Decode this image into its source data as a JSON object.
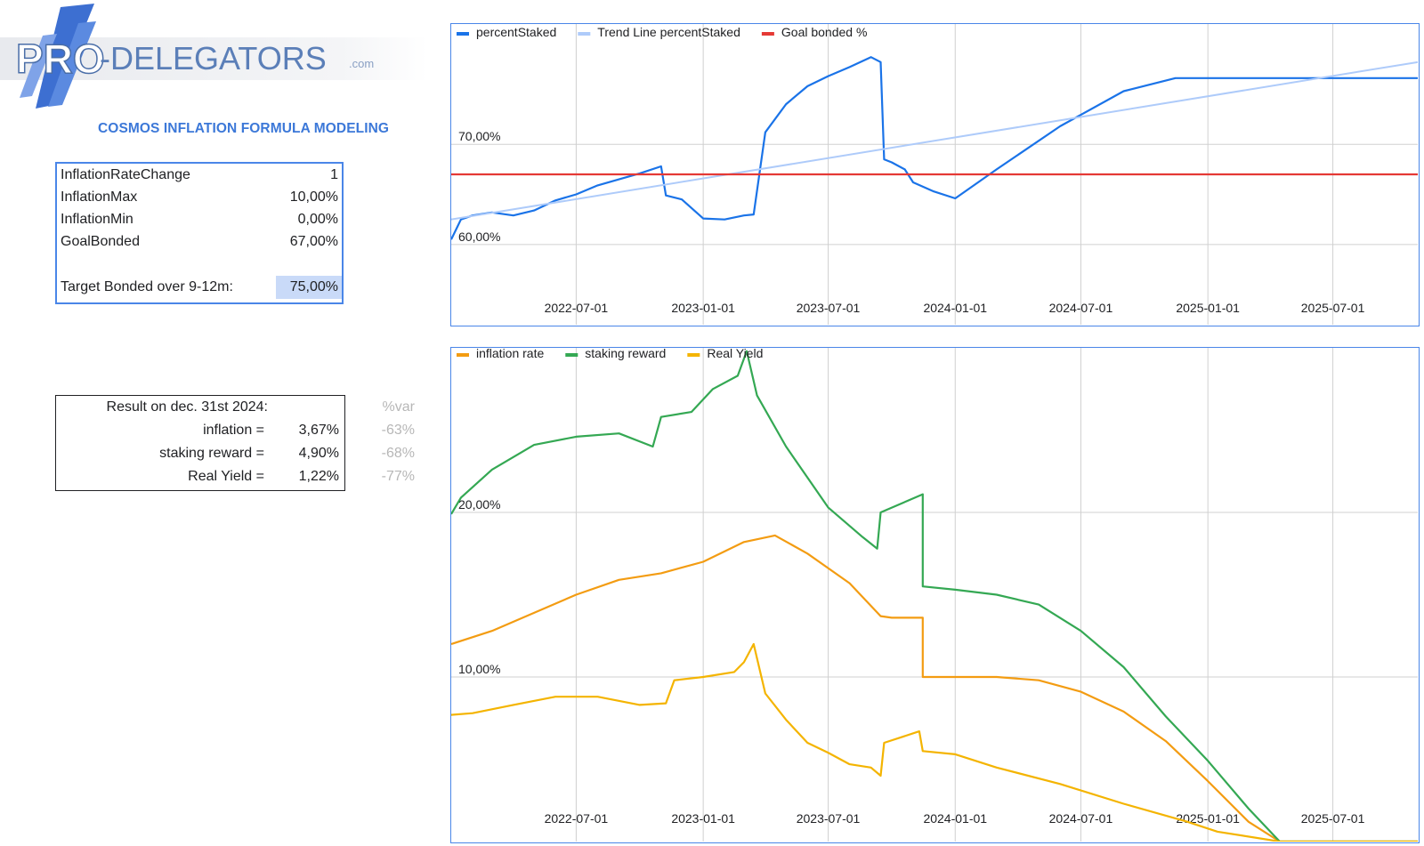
{
  "logo": {
    "text_pro": "PRO",
    "text_main": "-DELEGATORS",
    "text_com": ".com"
  },
  "subtitle": "COSMOS INFLATION FORMULA MODELING",
  "params": [
    {
      "label": "InflationRateChange",
      "value": "1"
    },
    {
      "label": "InflationMax",
      "value": "10,00%"
    },
    {
      "label": "InflationMin",
      "value": "0,00%"
    },
    {
      "label": "GoalBonded",
      "value": "67,00%"
    }
  ],
  "target": {
    "label": "Target Bonded over 9-12m:",
    "value": "75,00%"
  },
  "results": {
    "header": "Result on dec. 31st 2024:",
    "var_header": "%var",
    "rows": [
      {
        "label": "inflation =",
        "value": "3,67%",
        "var": "-63%"
      },
      {
        "label": "staking reward =",
        "value": "4,90%",
        "var": "-68%"
      },
      {
        "label": "Real Yield =",
        "value": "1,22%",
        "var": "-77%"
      }
    ]
  },
  "colors": {
    "percentStaked": "#1a73e8",
    "trend": "#aecbfa",
    "goal": "#e53935",
    "inflation": "#f39c12",
    "staking": "#34a853",
    "realyield": "#f4b400",
    "grid": "#d0d0d0",
    "accent": "#4a86e8"
  },
  "chart_data": [
    {
      "type": "line",
      "x_type": "date",
      "xlim": [
        "2022-01-01",
        "2025-11-01"
      ],
      "ylim": [
        52,
        82
      ],
      "yticks": [
        60,
        70
      ],
      "ytick_labels": [
        "60,00%",
        "70,00%"
      ],
      "xticks": [
        "2022-07-01",
        "2023-01-01",
        "2023-07-01",
        "2024-01-01",
        "2024-07-01",
        "2025-01-01",
        "2025-07-01"
      ],
      "legend": "top-left",
      "grid": true,
      "series": [
        {
          "name": "percentStaked",
          "x": [
            "2022-01-01",
            "2022-01-15",
            "2022-02-01",
            "2022-03-01",
            "2022-04-01",
            "2022-05-01",
            "2022-06-01",
            "2022-07-01",
            "2022-08-01",
            "2022-09-01",
            "2022-10-01",
            "2022-11-01",
            "2022-11-08",
            "2022-12-01",
            "2023-01-01",
            "2023-02-01",
            "2023-03-01",
            "2023-03-15",
            "2023-04-01",
            "2023-05-01",
            "2023-06-01",
            "2023-07-01",
            "2023-08-01",
            "2023-09-01",
            "2023-09-15",
            "2023-09-20",
            "2023-10-01",
            "2023-10-20",
            "2023-11-01",
            "2023-12-01",
            "2024-01-01",
            "2024-03-01",
            "2024-06-01",
            "2024-09-01",
            "2024-11-15",
            "2025-01-01",
            "2025-04-01",
            "2025-07-01",
            "2025-11-01"
          ],
          "values": [
            60.5,
            62.5,
            62.9,
            63.2,
            62.9,
            63.4,
            64.4,
            65.0,
            65.9,
            66.5,
            67.1,
            67.8,
            64.9,
            64.5,
            62.6,
            62.5,
            62.9,
            63.0,
            71.2,
            74.0,
            75.8,
            76.8,
            77.7,
            78.7,
            78.2,
            68.5,
            68.2,
            67.5,
            66.2,
            65.3,
            64.6,
            67.5,
            71.8,
            75.3,
            76.6,
            76.6,
            76.6,
            76.6,
            76.6
          ]
        },
        {
          "name": "Trend Line percentStaked",
          "x": [
            "2022-01-01",
            "2025-11-01"
          ],
          "values": [
            62.5,
            78.2
          ]
        },
        {
          "name": "Goal bonded %",
          "x": [
            "2022-01-01",
            "2025-11-01"
          ],
          "values": [
            67.0,
            67.0
          ]
        }
      ]
    },
    {
      "type": "line",
      "x_type": "date",
      "xlim": [
        "2022-01-01",
        "2025-11-01"
      ],
      "ylim": [
        0,
        30
      ],
      "yticks": [
        10,
        20
      ],
      "ytick_labels": [
        "10,00%",
        "20,00%"
      ],
      "xticks": [
        "2022-07-01",
        "2023-01-01",
        "2023-07-01",
        "2024-01-01",
        "2024-07-01",
        "2025-01-01",
        "2025-07-01"
      ],
      "legend": "top-left",
      "grid": true,
      "series": [
        {
          "name": "inflation rate",
          "x": [
            "2022-01-01",
            "2022-03-01",
            "2022-05-01",
            "2022-07-01",
            "2022-09-01",
            "2022-11-01",
            "2023-01-01",
            "2023-03-01",
            "2023-04-15",
            "2023-06-01",
            "2023-08-01",
            "2023-09-15",
            "2023-10-01",
            "2023-11-15",
            "2023-11-15",
            "2024-01-01",
            "2024-03-01",
            "2024-05-01",
            "2024-07-01",
            "2024-09-01",
            "2024-11-01",
            "2025-01-01",
            "2025-03-01",
            "2025-04-15",
            "2025-11-01"
          ],
          "values": [
            12.0,
            12.8,
            13.9,
            15.0,
            15.9,
            16.3,
            17.0,
            18.2,
            18.6,
            17.5,
            15.7,
            13.7,
            13.6,
            13.6,
            10.0,
            10.0,
            10.0,
            9.8,
            9.1,
            7.9,
            6.1,
            3.67,
            1.2,
            0.0,
            0.0
          ]
        },
        {
          "name": "staking reward",
          "x": [
            "2022-01-01",
            "2022-01-15",
            "2022-03-01",
            "2022-05-01",
            "2022-07-01",
            "2022-09-01",
            "2022-10-20",
            "2022-11-01",
            "2022-12-15",
            "2023-01-15",
            "2023-02-20",
            "2023-03-05",
            "2023-03-20",
            "2023-05-01",
            "2023-07-01",
            "2023-08-20",
            "2023-09-10",
            "2023-09-15",
            "2023-11-15",
            "2023-11-15",
            "2024-01-01",
            "2024-03-01",
            "2024-05-01",
            "2024-07-01",
            "2024-09-01",
            "2024-11-01",
            "2025-01-01",
            "2025-03-01",
            "2025-04-15",
            "2025-11-01"
          ],
          "values": [
            19.9,
            20.9,
            22.6,
            24.1,
            24.6,
            24.8,
            24.0,
            25.8,
            26.1,
            27.5,
            28.3,
            29.8,
            27.1,
            24.0,
            20.3,
            18.5,
            17.8,
            20.0,
            21.1,
            15.5,
            15.3,
            15.0,
            14.4,
            12.8,
            10.6,
            7.6,
            4.9,
            2.0,
            0.0,
            0.0
          ]
        },
        {
          "name": "Real Yield",
          "x": [
            "2022-01-01",
            "2022-02-01",
            "2022-04-01",
            "2022-06-01",
            "2022-08-01",
            "2022-10-01",
            "2022-11-08",
            "2022-11-20",
            "2023-01-01",
            "2023-02-15",
            "2023-03-01",
            "2023-03-15",
            "2023-04-01",
            "2023-05-01",
            "2023-06-01",
            "2023-07-01",
            "2023-08-01",
            "2023-09-01",
            "2023-09-15",
            "2023-09-20",
            "2023-11-10",
            "2023-11-15",
            "2024-01-01",
            "2024-03-01",
            "2024-06-01",
            "2024-09-01",
            "2024-12-01",
            "2025-01-15",
            "2025-04-15",
            "2025-11-01"
          ],
          "values": [
            7.7,
            7.8,
            8.3,
            8.8,
            8.8,
            8.3,
            8.4,
            9.8,
            10.0,
            10.3,
            10.9,
            12.0,
            9.0,
            7.4,
            6.0,
            5.4,
            4.7,
            4.5,
            4.0,
            6.0,
            6.7,
            5.5,
            5.3,
            4.5,
            3.5,
            2.3,
            1.22,
            0.6,
            0.0,
            0.0
          ]
        }
      ]
    }
  ]
}
